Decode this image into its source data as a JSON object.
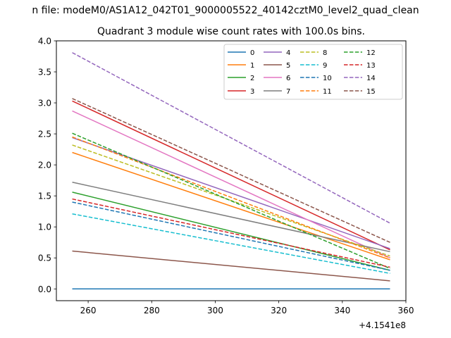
{
  "chart_data": {
    "type": "line",
    "suptitle": "n file: modeM0/AS1A12_042T01_9000005522_40142cztM0_level2_quad_clean",
    "title": "Quadrant 3 module wise count rates with 100.0s bins.",
    "xlabel": "",
    "ylabel": "",
    "x_offset_label": "+4.1541e8",
    "x": [
      255,
      355
    ],
    "xlim": [
      250,
      360
    ],
    "ylim": [
      -0.19,
      4.0
    ],
    "xticks": [
      260,
      280,
      300,
      320,
      340,
      360
    ],
    "xtick_labels": [
      "260",
      "280",
      "300",
      "320",
      "340",
      "360"
    ],
    "yticks": [
      0.0,
      0.5,
      1.0,
      1.5,
      2.0,
      2.5,
      3.0,
      3.5,
      4.0
    ],
    "ytick_labels": [
      "0.0",
      "0.5",
      "1.0",
      "1.5",
      "2.0",
      "2.5",
      "3.0",
      "3.5",
      "4.0"
    ],
    "grid": false,
    "legend_position": "top-right",
    "legend_columns": 4,
    "series": [
      {
        "name": "0",
        "values": [
          0.0,
          0.0
        ],
        "color": "#1f77b4",
        "dash": "solid"
      },
      {
        "name": "1",
        "values": [
          2.2,
          0.47
        ],
        "color": "#ff7f0e",
        "dash": "solid"
      },
      {
        "name": "2",
        "values": [
          1.56,
          0.3
        ],
        "color": "#2ca02c",
        "dash": "solid"
      },
      {
        "name": "3",
        "values": [
          3.03,
          0.63
        ],
        "color": "#d62728",
        "dash": "solid"
      },
      {
        "name": "4",
        "values": [
          2.44,
          0.65
        ],
        "color": "#9467bd",
        "dash": "solid"
      },
      {
        "name": "5",
        "values": [
          0.61,
          0.13
        ],
        "color": "#8c564b",
        "dash": "solid"
      },
      {
        "name": "6",
        "values": [
          2.87,
          0.5
        ],
        "color": "#e377c2",
        "dash": "solid"
      },
      {
        "name": "7",
        "values": [
          1.72,
          0.6
        ],
        "color": "#7f7f7f",
        "dash": "solid"
      },
      {
        "name": "8",
        "values": [
          2.32,
          0.53
        ],
        "color": "#bcbd22",
        "dash": "dashed"
      },
      {
        "name": "9",
        "values": [
          1.21,
          0.25
        ],
        "color": "#17becf",
        "dash": "dashed"
      },
      {
        "name": "10",
        "values": [
          1.4,
          0.3
        ],
        "color": "#1f77b4",
        "dash": "dashed"
      },
      {
        "name": "11",
        "values": [
          2.45,
          0.5
        ],
        "color": "#ff7f0e",
        "dash": "dashed"
      },
      {
        "name": "12",
        "values": [
          2.51,
          0.33
        ],
        "color": "#2ca02c",
        "dash": "dashed"
      },
      {
        "name": "13",
        "values": [
          1.45,
          0.35
        ],
        "color": "#d62728",
        "dash": "dashed"
      },
      {
        "name": "14",
        "values": [
          3.81,
          1.06
        ],
        "color": "#9467bd",
        "dash": "dashed"
      },
      {
        "name": "15",
        "values": [
          3.07,
          0.75
        ],
        "color": "#8c564b",
        "dash": "dashed"
      }
    ]
  }
}
